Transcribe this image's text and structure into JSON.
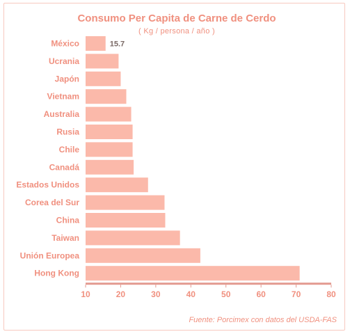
{
  "chart_data": {
    "type": "bar",
    "orientation": "horizontal",
    "title": "Consumo Per Capita de Carne de Cerdo",
    "subtitle": "( Kg / persona / año )",
    "categories": [
      "México",
      "Ucrania",
      "Japón",
      "Vietnam",
      "Australia",
      "Rusia",
      "Chile",
      "Canadá",
      "Estados Unidos",
      "Corea del Sur",
      "China",
      "Taiwan",
      "Unión Europea",
      "Hong Kong"
    ],
    "values": [
      15.7,
      19.4,
      20.0,
      21.6,
      23.0,
      23.4,
      23.4,
      23.7,
      27.8,
      32.5,
      32.7,
      36.9,
      42.7,
      71.0
    ],
    "data_labels": [
      {
        "category": "México",
        "text": "15.7"
      }
    ],
    "xlim": [
      10,
      80
    ],
    "xticks": [
      "10",
      "20",
      "30",
      "40",
      "50",
      "60",
      "70",
      "80"
    ],
    "bar_color": "#fbb9aa",
    "text_color": "#f0907f",
    "source": "Fuente: Porcimex con datos del USDA-FAS"
  }
}
